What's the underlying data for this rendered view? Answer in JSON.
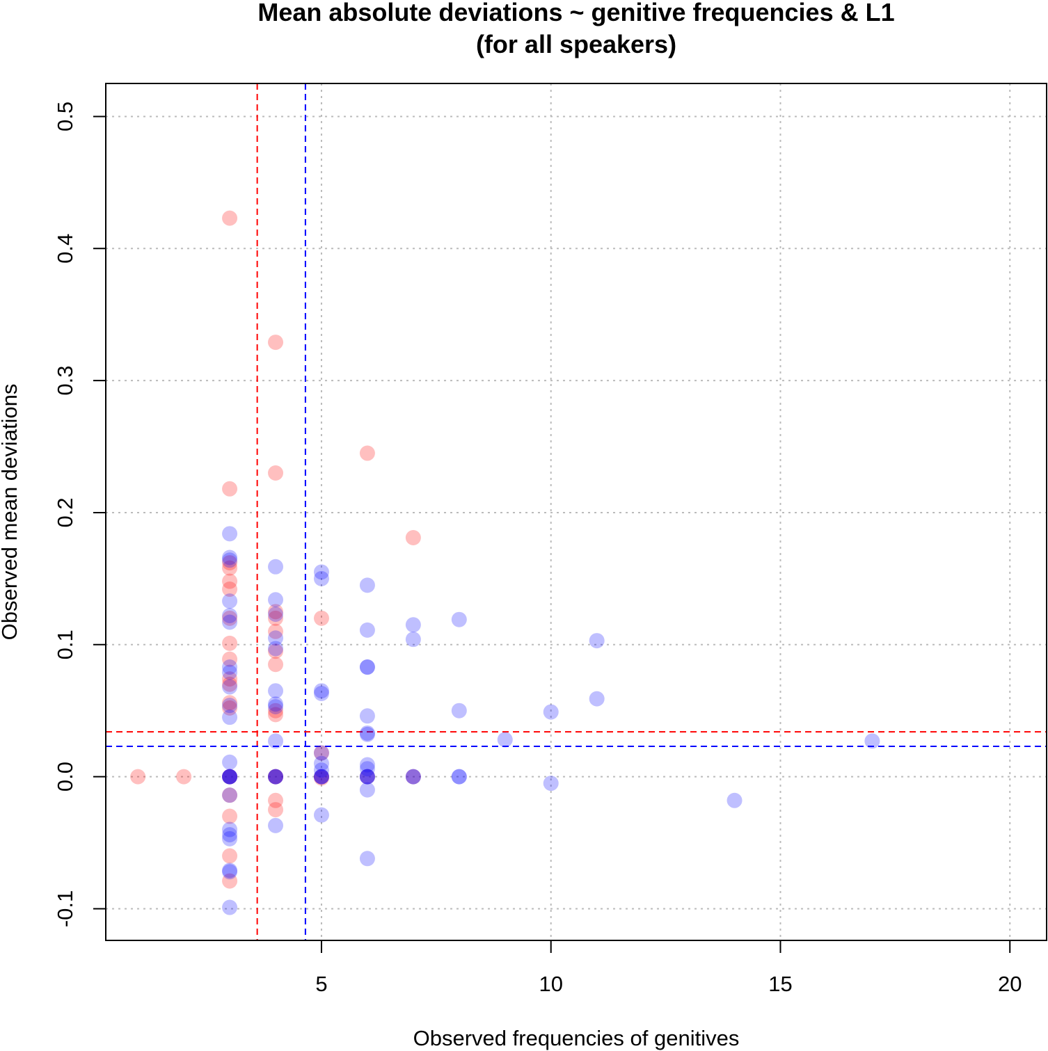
{
  "chart_data": {
    "type": "scatter",
    "title_line1": "Mean absolute deviations ~ genitive frequencies & L1",
    "title_line2": "(for all speakers)",
    "xlabel": "Observed frequencies of genitives",
    "ylabel": "Observed mean deviations",
    "xlim": [
      0.3,
      20.8
    ],
    "ylim": [
      -0.124,
      0.525
    ],
    "x_ticks": [
      5,
      10,
      15,
      20
    ],
    "x_tick_labels": [
      "5",
      "10",
      "15",
      "20"
    ],
    "y_ticks": [
      -0.1,
      0.0,
      0.1,
      0.2,
      0.3,
      0.4,
      0.5
    ],
    "y_tick_labels": [
      "-0.1",
      "0.0",
      "0.1",
      "0.2",
      "0.3",
      "0.4",
      "0.5"
    ],
    "grid": true,
    "colors": {
      "red": "#ff0000",
      "blue": "#0000ff",
      "grid": "#bbbbbb"
    },
    "reference_lines": {
      "red_vertical_x": 3.6,
      "blue_vertical_x": 4.65,
      "red_horizontal_y": 0.034,
      "blue_horizontal_y": 0.023
    },
    "series": [
      {
        "color": "#ff0000",
        "points": [
          [
            1,
            0
          ],
          [
            2,
            0
          ],
          [
            3,
            0.423
          ],
          [
            3,
            0.218
          ],
          [
            3,
            0.162
          ],
          [
            3,
            0.158
          ],
          [
            3,
            0.148
          ],
          [
            3,
            0.142
          ],
          [
            3,
            0.101
          ],
          [
            3,
            0.089
          ],
          [
            3,
            0.074
          ],
          [
            3,
            0.07
          ],
          [
            3,
            0.056
          ],
          [
            3,
            0.052
          ],
          [
            3,
            0.12
          ],
          [
            3,
            -0.014
          ],
          [
            3,
            -0.03
          ],
          [
            3,
            -0.06
          ],
          [
            3,
            -0.079
          ],
          [
            3,
            0
          ],
          [
            3,
            0
          ],
          [
            4,
            0.329
          ],
          [
            4,
            0.23
          ],
          [
            4,
            0.125
          ],
          [
            4,
            0.12
          ],
          [
            4,
            0.11
          ],
          [
            4,
            0.095
          ],
          [
            4,
            0.085
          ],
          [
            4,
            0.05
          ],
          [
            4,
            0.047
          ],
          [
            4,
            -0.018
          ],
          [
            4,
            -0.025
          ],
          [
            4,
            0
          ],
          [
            4,
            0
          ],
          [
            5,
            0.12
          ],
          [
            5,
            0.018
          ],
          [
            5,
            -0.001
          ],
          [
            5,
            0
          ],
          [
            6,
            0.245
          ],
          [
            6,
            0
          ],
          [
            7,
            0.181
          ],
          [
            7,
            0
          ]
        ]
      },
      {
        "color": "#0000ff",
        "points": [
          [
            3,
            0.184
          ],
          [
            3,
            0.166
          ],
          [
            3,
            0.164
          ],
          [
            3,
            0.133
          ],
          [
            3,
            0.122
          ],
          [
            3,
            0.117
          ],
          [
            3,
            0.083
          ],
          [
            3,
            0.079
          ],
          [
            3,
            0.068
          ],
          [
            3,
            0.054
          ],
          [
            3,
            0.045
          ],
          [
            3,
            0.011
          ],
          [
            3,
            0
          ],
          [
            3,
            0
          ],
          [
            3,
            0
          ],
          [
            3,
            0
          ],
          [
            3,
            -0.014
          ],
          [
            3,
            -0.04
          ],
          [
            3,
            -0.044
          ],
          [
            3,
            -0.047
          ],
          [
            3,
            -0.071
          ],
          [
            3,
            -0.072
          ],
          [
            3,
            -0.099
          ],
          [
            4,
            0.159
          ],
          [
            4,
            0.134
          ],
          [
            4,
            0.123
          ],
          [
            4,
            0.105
          ],
          [
            4,
            0.097
          ],
          [
            4,
            0.065
          ],
          [
            4,
            0.055
          ],
          [
            4,
            0.053
          ],
          [
            4,
            0.027
          ],
          [
            4,
            0
          ],
          [
            4,
            0
          ],
          [
            4,
            0
          ],
          [
            4,
            -0.037
          ],
          [
            5,
            0.155
          ],
          [
            5,
            0.15
          ],
          [
            5,
            0.065
          ],
          [
            5,
            0.063
          ],
          [
            5,
            0.018
          ],
          [
            5,
            0.01
          ],
          [
            5,
            0.005
          ],
          [
            5,
            0
          ],
          [
            5,
            0
          ],
          [
            5,
            0
          ],
          [
            5,
            -0.029
          ],
          [
            6,
            0.145
          ],
          [
            6,
            0.111
          ],
          [
            6,
            0.083
          ],
          [
            6,
            0.083
          ],
          [
            6,
            0.046
          ],
          [
            6,
            0.033
          ],
          [
            6,
            0.032
          ],
          [
            6,
            0.009
          ],
          [
            6,
            0.006
          ],
          [
            6,
            0
          ],
          [
            6,
            0
          ],
          [
            6,
            0
          ],
          [
            6,
            -0.01
          ],
          [
            6,
            -0.062
          ],
          [
            7,
            0.115
          ],
          [
            7,
            0.104
          ],
          [
            7,
            0
          ],
          [
            7,
            0
          ],
          [
            8,
            0.119
          ],
          [
            8,
            0.05
          ],
          [
            8,
            0
          ],
          [
            8,
            0
          ],
          [
            9,
            0.028
          ],
          [
            10,
            0.049
          ],
          [
            10,
            -0.005
          ],
          [
            11,
            0.103
          ],
          [
            11,
            0.059
          ],
          [
            14,
            -0.018
          ],
          [
            17,
            0.027
          ]
        ]
      }
    ]
  }
}
